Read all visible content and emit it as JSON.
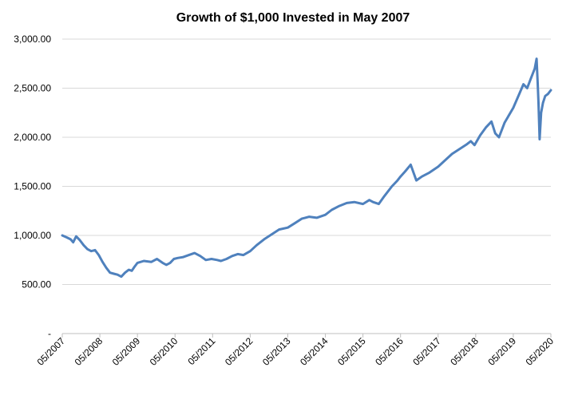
{
  "chart_data": {
    "type": "line",
    "title": "Growth of $1,000 Invested in May 2007",
    "xlabel": "",
    "ylabel": "",
    "ylim": [
      0,
      3000
    ],
    "yticks": [
      0,
      500,
      1000,
      1500,
      2000,
      2500,
      3000
    ],
    "ytick_labels": [
      "-",
      "500.00",
      "1,000.00",
      "1,500.00",
      "2,000.00",
      "2,500.00",
      "3,000.00"
    ],
    "xlim": [
      2007.33,
      2020.33
    ],
    "xticks": [
      2007.33,
      2008.33,
      2009.33,
      2010.33,
      2011.33,
      2012.33,
      2013.33,
      2014.33,
      2015.33,
      2016.33,
      2017.33,
      2018.33,
      2019.33,
      2020.33
    ],
    "xtick_labels": [
      "05/2007",
      "05/2008",
      "05/2009",
      "05/2010",
      "05/2011",
      "05/2012",
      "05/2013",
      "05/2014",
      "05/2015",
      "05/2016",
      "05/2017",
      "05/2018",
      "05/2019",
      "05/2020"
    ],
    "grid": true,
    "color": "#4f81bd",
    "series": [
      {
        "name": "Growth of $1,000",
        "x": [
          2007.33,
          2007.45,
          2007.55,
          2007.62,
          2007.7,
          2007.8,
          2007.9,
          2008.0,
          2008.1,
          2008.2,
          2008.3,
          2008.4,
          2008.5,
          2008.6,
          2008.7,
          2008.8,
          2008.9,
          2009.0,
          2009.1,
          2009.18,
          2009.25,
          2009.33,
          2009.5,
          2009.7,
          2009.85,
          2010.0,
          2010.1,
          2010.2,
          2010.3,
          2010.4,
          2010.55,
          2010.7,
          2010.85,
          2011.0,
          2011.15,
          2011.3,
          2011.45,
          2011.55,
          2011.7,
          2011.85,
          2012.0,
          2012.15,
          2012.33,
          2012.5,
          2012.7,
          2012.9,
          2013.1,
          2013.33,
          2013.5,
          2013.7,
          2013.9,
          2014.1,
          2014.33,
          2014.5,
          2014.7,
          2014.9,
          2015.1,
          2015.33,
          2015.5,
          2015.6,
          2015.75,
          2015.9,
          2016.1,
          2016.25,
          2016.33,
          2016.45,
          2016.6,
          2016.75,
          2016.9,
          2017.1,
          2017.33,
          2017.5,
          2017.7,
          2017.9,
          2018.1,
          2018.2,
          2018.3,
          2018.45,
          2018.6,
          2018.75,
          2018.85,
          2018.95,
          2019.1,
          2019.33,
          2019.5,
          2019.6,
          2019.7,
          2019.8,
          2019.85,
          2019.9,
          2019.95,
          2019.98,
          2020.0,
          2020.03,
          2020.07,
          2020.12,
          2020.18,
          2020.25,
          2020.33
        ],
        "values": [
          1000,
          980,
          960,
          930,
          990,
          950,
          900,
          860,
          840,
          850,
          800,
          730,
          670,
          620,
          610,
          600,
          580,
          620,
          650,
          640,
          680,
          720,
          740,
          730,
          760,
          720,
          700,
          720,
          760,
          770,
          780,
          800,
          820,
          790,
          750,
          760,
          750,
          740,
          760,
          790,
          810,
          800,
          840,
          900,
          960,
          1010,
          1060,
          1080,
          1120,
          1170,
          1190,
          1180,
          1210,
          1260,
          1300,
          1330,
          1340,
          1320,
          1360,
          1340,
          1320,
          1400,
          1500,
          1560,
          1600,
          1650,
          1720,
          1560,
          1600,
          1640,
          1700,
          1760,
          1830,
          1880,
          1930,
          1960,
          1920,
          2020,
          2100,
          2160,
          2040,
          2000,
          2150,
          2300,
          2450,
          2540,
          2500,
          2600,
          2650,
          2700,
          2800,
          2550,
          2350,
          1980,
          2250,
          2350,
          2420,
          2440,
          2480
        ]
      }
    ]
  }
}
